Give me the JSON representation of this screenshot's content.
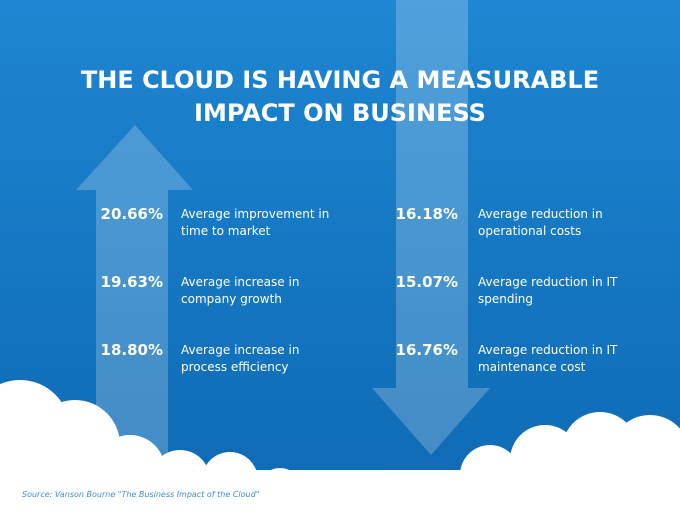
{
  "title": [
    "THE CLOUD IS HAVING A MEASURABLE",
    "IMPACT ON BUSINESS"
  ],
  "improvements": [
    {
      "value": "20.66%",
      "label": [
        "Average improvement in",
        "time to market"
      ]
    },
    {
      "value": "19.63%",
      "label": [
        "Average increase in",
        "company growth"
      ]
    },
    {
      "value": "18.80%",
      "label": [
        "Average increase in",
        "process efficiency"
      ]
    }
  ],
  "reductions": [
    {
      "value": "16.18%",
      "label": [
        "Average reduction in",
        "operational costs"
      ]
    },
    {
      "value": "15.07%",
      "label": [
        "Average reduction in IT",
        "spending"
      ]
    },
    {
      "value": "16.76%",
      "label": [
        "Average reduction in IT",
        "maintenance cost"
      ]
    }
  ],
  "source": "Source: Vanson Bourne \"The Business Impact of the Cloud\""
}
